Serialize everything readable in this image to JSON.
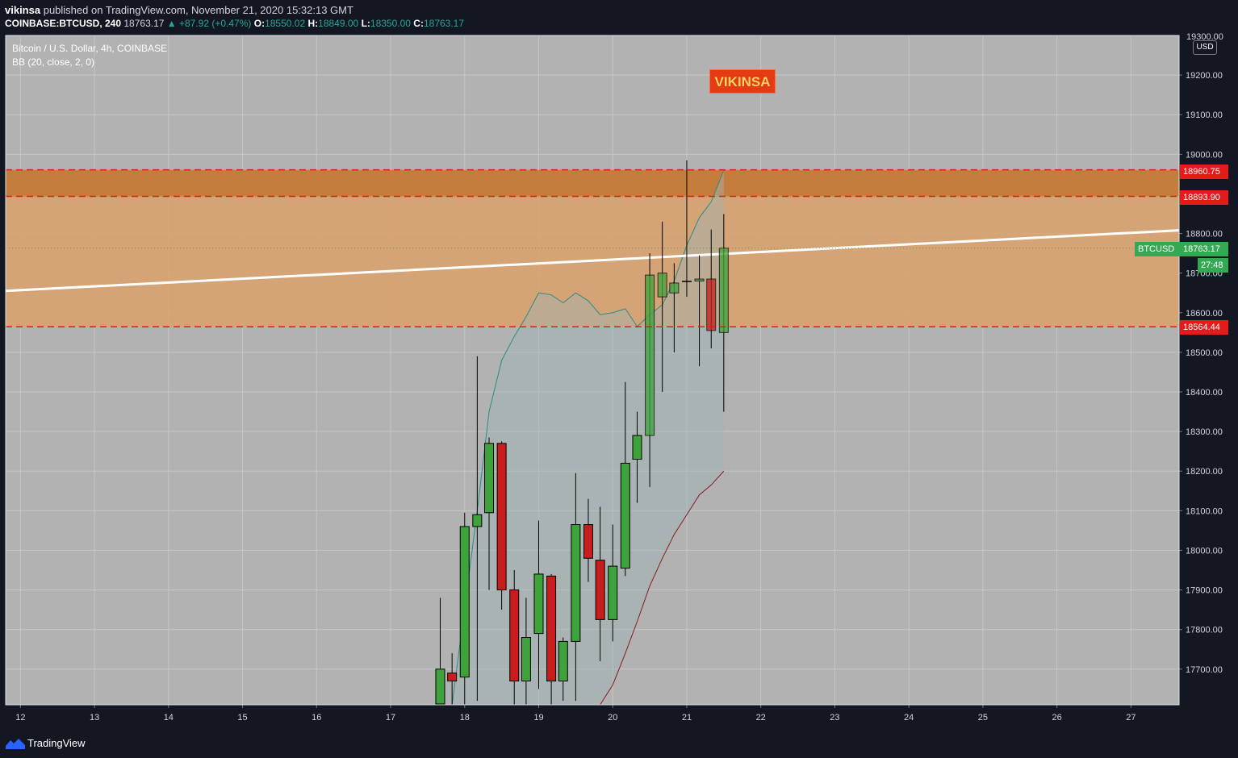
{
  "header": {
    "publisher": "vikinsa",
    "published_text": "published on TradingView.com, November 21, 2020 15:32:13 GMT",
    "symbol": "COINBASE:BTCUSD, 240",
    "last": "18763.17",
    "change": "▲ +87.92 (+0.47%)",
    "o_label": "O:",
    "o_value": "18550.02",
    "h_label": "H:",
    "h_value": "18849.00",
    "l_label": "L:",
    "l_value": "18350.00",
    "c_label": "C:",
    "c_value": "18763.17"
  },
  "legend": {
    "title": "Bitcoin / U.S. Dollar, 4h, COINBASE",
    "indicator": "BB (20, close, 2, 0)"
  },
  "watermark": "VIKINSA",
  "currency": "USD",
  "top_price_label": "19300.00",
  "price_tags": {
    "resistance_top": "18960.75",
    "resistance_bottom": "18893.90",
    "symbol_name": "BTCUSD",
    "last_price": "18763.17",
    "countdown": "27:48",
    "support": "18564.44"
  },
  "footer": {
    "brand": "TradingView"
  },
  "colors": {
    "background": "#b2b2b2",
    "up": "#3fa33c",
    "down": "#c91d1d",
    "zone_light": "#d9a06b",
    "zone_dark": "#c67a38",
    "zone_line": "#e31a1a",
    "trendline": "#ffffff",
    "bb_upper": "#2e8b84",
    "bb_lower": "#8b1a1a",
    "tag_red": "#e51a1a",
    "tag_green": "#34a853"
  },
  "chart_data": {
    "type": "candlestick",
    "title": "Bitcoin / U.S. Dollar, 4h, COINBASE",
    "x_axis": {
      "ticks": [
        "12",
        "13",
        "14",
        "15",
        "16",
        "17",
        "18",
        "19",
        "20",
        "21",
        "22",
        "23",
        "24",
        "25",
        "26",
        "27"
      ],
      "range_days": [
        11.8,
        27.65
      ]
    },
    "y_axis": {
      "ticks": [
        17700,
        17800,
        17900,
        18000,
        18100,
        18200,
        18300,
        18400,
        18500,
        18600,
        18700,
        18800,
        18900,
        19000,
        19100,
        19200,
        19300
      ],
      "range": [
        17610,
        19300
      ]
    },
    "candles": [
      {
        "t": 17.67,
        "o": 17612,
        "h": 17880,
        "l": 17560,
        "c": 17700
      },
      {
        "t": 17.83,
        "o": 17690,
        "h": 17740,
        "l": 17600,
        "c": 17670
      },
      {
        "t": 18.0,
        "o": 17680,
        "h": 18095,
        "l": 17600,
        "c": 18060
      },
      {
        "t": 18.17,
        "o": 18060,
        "h": 18490,
        "l": 17620,
        "c": 18090
      },
      {
        "t": 18.33,
        "o": 18095,
        "h": 18285,
        "l": 17900,
        "c": 18270
      },
      {
        "t": 18.5,
        "o": 18270,
        "h": 18275,
        "l": 17850,
        "c": 17900
      },
      {
        "t": 18.67,
        "o": 17900,
        "h": 17950,
        "l": 17600,
        "c": 17670
      },
      {
        "t": 18.83,
        "o": 17670,
        "h": 17880,
        "l": 17600,
        "c": 17780
      },
      {
        "t": 19.0,
        "o": 17790,
        "h": 18075,
        "l": 17650,
        "c": 17940
      },
      {
        "t": 19.17,
        "o": 17935,
        "h": 17940,
        "l": 17610,
        "c": 17670
      },
      {
        "t": 19.33,
        "o": 17670,
        "h": 17780,
        "l": 17620,
        "c": 17770
      },
      {
        "t": 19.5,
        "o": 17770,
        "h": 18195,
        "l": 17620,
        "c": 18065
      },
      {
        "t": 19.67,
        "o": 18065,
        "h": 18130,
        "l": 17920,
        "c": 17980
      },
      {
        "t": 19.83,
        "o": 17975,
        "h": 18110,
        "l": 17720,
        "c": 17825
      },
      {
        "t": 20.0,
        "o": 17825,
        "h": 18065,
        "l": 17770,
        "c": 17960
      },
      {
        "t": 20.17,
        "o": 17955,
        "h": 18425,
        "l": 17935,
        "c": 18220
      },
      {
        "t": 20.33,
        "o": 18230,
        "h": 18350,
        "l": 18120,
        "c": 18290
      },
      {
        "t": 20.5,
        "o": 18290,
        "h": 18750,
        "l": 18160,
        "c": 18695
      },
      {
        "t": 20.67,
        "o": 18640,
        "h": 18830,
        "l": 18400,
        "c": 18700
      },
      {
        "t": 20.83,
        "o": 18650,
        "h": 18725,
        "l": 18500,
        "c": 18675
      },
      {
        "t": 21.0,
        "o": 18680,
        "h": 18985,
        "l": 18640,
        "c": 18680
      },
      {
        "t": 21.17,
        "o": 18680,
        "h": 18745,
        "l": 18465,
        "c": 18685
      },
      {
        "t": 21.33,
        "o": 18685,
        "h": 18810,
        "l": 18510,
        "c": 18555
      },
      {
        "t": 21.5,
        "o": 18550,
        "h": 18849,
        "l": 18350,
        "c": 18763
      }
    ],
    "bollinger": {
      "params": "BB (20, close, 2, 0)",
      "upper": [
        {
          "t": 17.83,
          "v": 17610
        },
        {
          "t": 18.17,
          "v": 18100
        },
        {
          "t": 18.33,
          "v": 18350
        },
        {
          "t": 18.5,
          "v": 18480
        },
        {
          "t": 18.67,
          "v": 18540
        },
        {
          "t": 18.83,
          "v": 18590
        },
        {
          "t": 19.0,
          "v": 18650
        },
        {
          "t": 19.17,
          "v": 18645
        },
        {
          "t": 19.33,
          "v": 18625
        },
        {
          "t": 19.5,
          "v": 18650
        },
        {
          "t": 19.67,
          "v": 18630
        },
        {
          "t": 19.83,
          "v": 18595
        },
        {
          "t": 20.0,
          "v": 18600
        },
        {
          "t": 20.17,
          "v": 18610
        },
        {
          "t": 20.33,
          "v": 18565
        },
        {
          "t": 20.5,
          "v": 18595
        },
        {
          "t": 20.67,
          "v": 18620
        },
        {
          "t": 20.83,
          "v": 18680
        },
        {
          "t": 21.0,
          "v": 18770
        },
        {
          "t": 21.17,
          "v": 18840
        },
        {
          "t": 21.33,
          "v": 18880
        },
        {
          "t": 21.5,
          "v": 18960
        }
      ],
      "lower": [
        {
          "t": 19.83,
          "v": 17610
        },
        {
          "t": 20.0,
          "v": 17660
        },
        {
          "t": 20.17,
          "v": 17740
        },
        {
          "t": 20.33,
          "v": 17820
        },
        {
          "t": 20.5,
          "v": 17910
        },
        {
          "t": 20.67,
          "v": 17980
        },
        {
          "t": 20.83,
          "v": 18040
        },
        {
          "t": 21.0,
          "v": 18090
        },
        {
          "t": 21.17,
          "v": 18140
        },
        {
          "t": 21.33,
          "v": 18165
        },
        {
          "t": 21.5,
          "v": 18200
        }
      ]
    },
    "zones": [
      {
        "from": 18564.44,
        "to": 18893.9,
        "style": "light"
      },
      {
        "from": 18893.9,
        "to": 18960.75,
        "style": "dark"
      }
    ],
    "trendline": {
      "from": {
        "t": 11.8,
        "v": 18655
      },
      "to": {
        "t": 27.65,
        "v": 18808
      }
    },
    "last_price": 18763.17
  }
}
